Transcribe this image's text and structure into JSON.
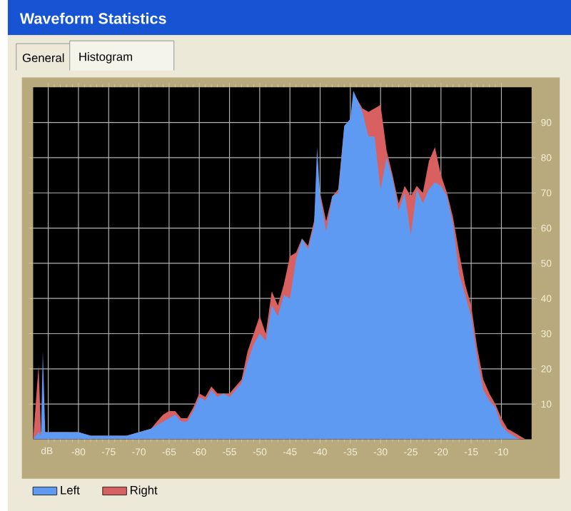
{
  "chart_data": {
    "type": "area",
    "title": "Waveform Statistics",
    "xlabel": "dB",
    "annotations": [
      "General",
      "Histogram"
    ],
    "x": [
      -87.5,
      -86.6,
      -86.2,
      -85.9,
      -85.5,
      -84,
      -82,
      -80,
      -78,
      -76,
      -74,
      -72,
      -70,
      -68,
      -67,
      -66,
      -65,
      -64,
      -63,
      -62,
      -61,
      -60,
      -59,
      -58,
      -57,
      -56,
      -55,
      -54,
      -53,
      -52,
      -51,
      -50,
      -49,
      -48,
      -47,
      -46,
      -45,
      -44,
      -43,
      -42,
      -41,
      -40.5,
      -40,
      -39,
      -38,
      -37,
      -36,
      -35,
      -34.5,
      -34,
      -33,
      -32,
      -31,
      -30,
      -29,
      -28,
      -27,
      -26,
      -25,
      -24,
      -23,
      -22,
      -21,
      -20,
      -19,
      -18,
      -17,
      -16,
      -15,
      -14,
      -13,
      -12,
      -11,
      -10,
      -9,
      -8,
      -7,
      -6
    ],
    "series": [
      {
        "name": "Right",
        "color": "#d96060",
        "values": [
          0,
          21,
          2,
          3,
          2,
          2,
          2,
          2,
          1,
          1,
          1,
          1,
          2,
          3,
          5,
          7,
          8,
          8,
          6,
          6,
          9,
          13,
          12,
          15,
          13,
          13,
          13,
          15,
          17,
          25,
          30,
          35,
          30,
          42,
          38,
          44,
          52,
          53,
          57,
          55,
          62,
          70,
          70,
          62,
          69,
          71,
          89,
          91,
          96,
          97,
          94,
          93,
          94,
          95,
          82,
          75,
          67,
          72,
          69,
          72,
          70,
          79,
          83,
          75,
          70,
          63,
          53,
          44,
          38,
          26,
          17,
          13,
          10,
          6,
          3,
          2,
          1,
          0
        ]
      },
      {
        "name": "Left",
        "color": "#5f9af2",
        "values": [
          0,
          2,
          1,
          25,
          2,
          2,
          2,
          2,
          1,
          1,
          1,
          1,
          2,
          3,
          4,
          5,
          6,
          7,
          5,
          5,
          8,
          12,
          11,
          14,
          12,
          13,
          12,
          14,
          16,
          22,
          27,
          30,
          28,
          38,
          35,
          41,
          40,
          51,
          57,
          54,
          61,
          83,
          69,
          59,
          69,
          70,
          89,
          91,
          99,
          97,
          93,
          86,
          86,
          71,
          80,
          74,
          65,
          70,
          58,
          71,
          67,
          71,
          73,
          72,
          69,
          61,
          47,
          41,
          35,
          23,
          14,
          11,
          9,
          4,
          2,
          1,
          0,
          0
        ]
      }
    ],
    "xlim": [
      -87.5,
      -5
    ],
    "ylim": [
      0,
      100
    ],
    "xticks": [
      {
        "value": -85,
        "label": null
      },
      -80,
      -75,
      -70,
      -65,
      -60,
      -55,
      -50,
      -45,
      -40,
      -35,
      -30,
      -25,
      -20,
      -15,
      -10
    ],
    "yticks": [
      10,
      20,
      30,
      40,
      50,
      60,
      70,
      80,
      90
    ],
    "grid": true,
    "legend": "bottom left"
  }
}
